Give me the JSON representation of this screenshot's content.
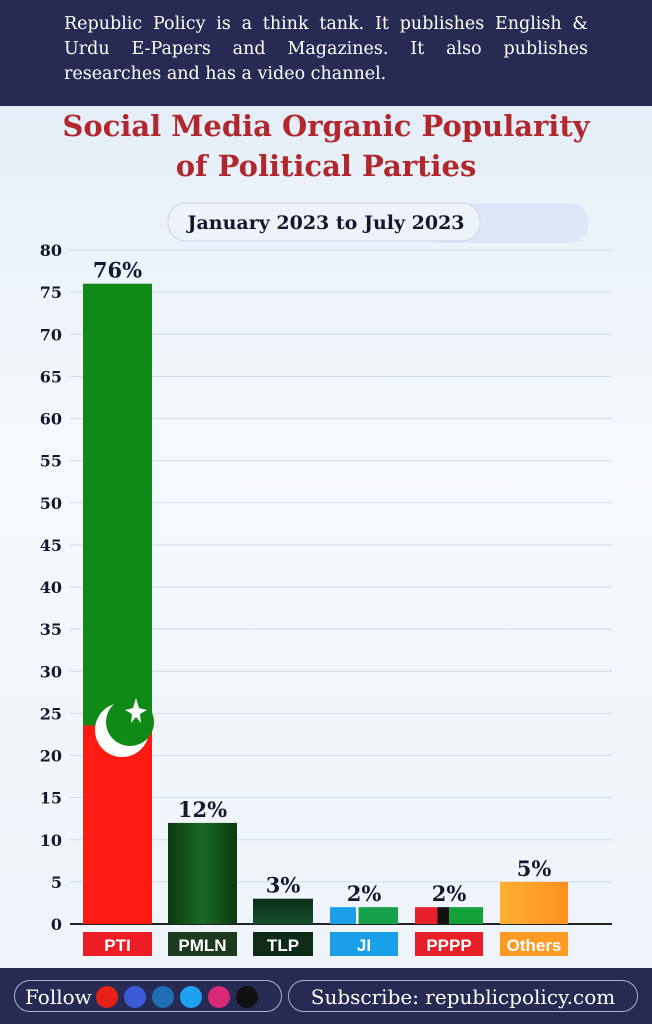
{
  "header": {
    "text": "Republic Policy is a think tank. It publishes English & Urdu E-Papers and Magazines. It also publishes researches and has a video channel."
  },
  "chart_data": {
    "type": "bar",
    "title": "Social Media Organic Popularity",
    "title_line2": "of Political Parties",
    "subtitle": "January 2023 to July 2023",
    "categories": [
      "PTI",
      "PMLN",
      "TLP",
      "JI",
      "PPPP",
      "Others"
    ],
    "values": [
      76,
      12,
      3,
      2,
      2,
      5
    ],
    "value_labels": [
      "76%",
      "12%",
      "3%",
      "2%",
      "2%",
      "5%"
    ],
    "ylim": [
      0,
      80
    ],
    "yticks": [
      0,
      5,
      10,
      15,
      20,
      25,
      30,
      35,
      40,
      45,
      50,
      55,
      60,
      65,
      70,
      75,
      80
    ],
    "grid": true
  },
  "footer": {
    "follow": "Follow",
    "subscribe": "Subscribe: republicpolicy.com"
  }
}
